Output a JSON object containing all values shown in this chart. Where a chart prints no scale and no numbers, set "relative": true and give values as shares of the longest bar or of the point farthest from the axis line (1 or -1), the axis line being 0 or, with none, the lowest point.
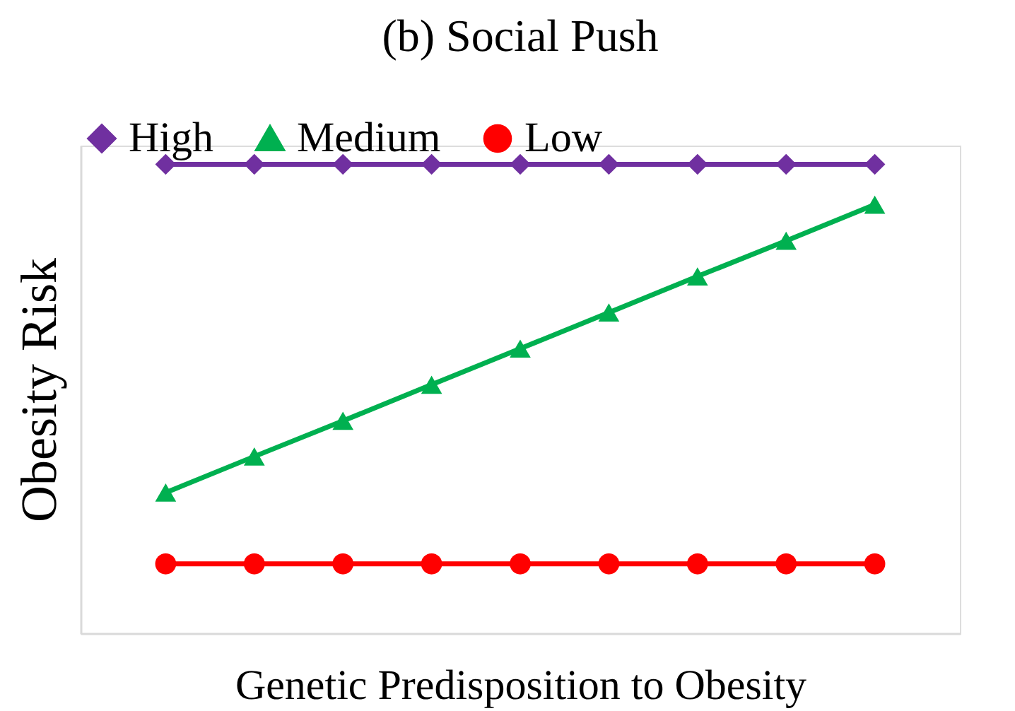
{
  "chart_data": {
    "type": "line",
    "title": "(b) Social Push",
    "xlabel": "Genetic Predisposition to Obesity",
    "ylabel": "Obesity Risk",
    "categories": [
      null,
      null,
      null,
      null,
      null,
      null,
      null,
      null,
      null
    ],
    "relative": true,
    "series": [
      {
        "name": "High",
        "color": "#7030a0",
        "marker": "diamond",
        "values": [
          1,
          1,
          1,
          1,
          1,
          1,
          1,
          1,
          1
        ]
      },
      {
        "name": "Medium",
        "color": "#00b050",
        "marker": "triangle",
        "values": [
          0.3,
          0.377,
          0.453,
          0.53,
          0.607,
          0.684,
          0.761,
          0.837,
          0.914
        ]
      },
      {
        "name": "Low",
        "color": "#ff0000",
        "marker": "circle",
        "values": [
          0.148,
          0.148,
          0.148,
          0.148,
          0.148,
          0.148,
          0.148,
          0.148,
          0.148
        ]
      }
    ],
    "legend": "top",
    "grid": false,
    "line_style": "solid"
  }
}
